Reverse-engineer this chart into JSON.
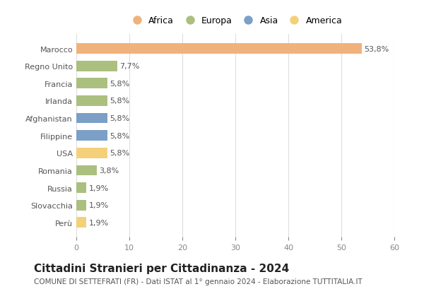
{
  "countries": [
    "Marocco",
    "Regno Unito",
    "Francia",
    "Irlanda",
    "Afghanistan",
    "Filippine",
    "USA",
    "Romania",
    "Russia",
    "Slovacchia",
    "Perù"
  ],
  "values": [
    53.8,
    7.7,
    5.8,
    5.8,
    5.8,
    5.8,
    5.8,
    3.8,
    1.9,
    1.9,
    1.9
  ],
  "labels": [
    "53,8%",
    "7,7%",
    "5,8%",
    "5,8%",
    "5,8%",
    "5,8%",
    "5,8%",
    "3,8%",
    "1,9%",
    "1,9%",
    "1,9%"
  ],
  "colors": [
    "#F0B27A",
    "#ABBF7F",
    "#ABBF7F",
    "#ABBF7F",
    "#7B9FC7",
    "#7B9FC7",
    "#F5D07A",
    "#ABBF7F",
    "#ABBF7F",
    "#ABBF7F",
    "#F5D07A"
  ],
  "legend_labels": [
    "Africa",
    "Europa",
    "Asia",
    "America"
  ],
  "legend_colors": [
    "#F0B27A",
    "#ABBF7F",
    "#7B9FC7",
    "#F5D07A"
  ],
  "title": "Cittadini Stranieri per Cittadinanza - 2024",
  "subtitle": "COMUNE DI SETTEFRATI (FR) - Dati ISTAT al 1° gennaio 2024 - Elaborazione TUTTITALIA.IT",
  "xlim": [
    0,
    60
  ],
  "xticks": [
    0,
    10,
    20,
    30,
    40,
    50,
    60
  ],
  "bg_color": "#ffffff",
  "grid_color": "#dddddd",
  "bar_height": 0.6,
  "title_fontsize": 11,
  "subtitle_fontsize": 7.5,
  "label_fontsize": 8,
  "tick_fontsize": 8,
  "legend_fontsize": 9
}
